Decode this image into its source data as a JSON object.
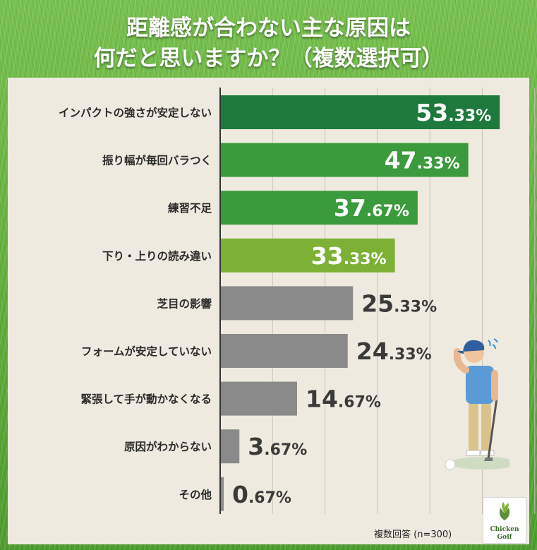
{
  "title": {
    "line1": "距離感が合わない主な原因は",
    "line2": "何だと思いますか？（複数選択可）"
  },
  "note": "複数回答 (n=300)",
  "logo": {
    "line1": "Chicken",
    "line2": "Golf"
  },
  "colors": {
    "dark_green": "#1e7a3c",
    "green": "#3a9a3c",
    "light_green": "#7cb135",
    "gray": "#8a8a8a",
    "panel": "#efeae0",
    "label_on_bar": "#ffffff",
    "label_off_bar": "#3a3a3a"
  },
  "chart_data": {
    "type": "bar",
    "orientation": "horizontal",
    "title": "距離感が合わない主な原因は何だと思いますか？（複数選択可）",
    "unit": "%",
    "xlim": [
      0,
      60
    ],
    "grid": true,
    "categories": [
      "インパクトの強さが安定しない",
      "振り幅が毎回バラつく",
      "練習不足",
      "下り・上りの読み違い",
      "芝目の影響",
      "フォームが安定していない",
      "緊張して手が動かなくなる",
      "原因がわからない",
      "その他"
    ],
    "values": [
      53.33,
      47.33,
      37.67,
      33.33,
      25.33,
      24.33,
      14.67,
      3.67,
      0.67
    ],
    "labels": [
      {
        "int": "53",
        "dec": ".33%"
      },
      {
        "int": "47",
        "dec": ".33%"
      },
      {
        "int": "37",
        "dec": ".67%"
      },
      {
        "int": "33",
        "dec": ".33%"
      },
      {
        "int": "25",
        "dec": ".33%"
      },
      {
        "int": "24",
        "dec": ".33%"
      },
      {
        "int": "14",
        "dec": ".67%"
      },
      {
        "int": "3",
        "dec": ".67%"
      },
      {
        "int": "0",
        "dec": ".67%"
      }
    ],
    "bar_colors": [
      "#1e7a3c",
      "#3a9a3c",
      "#3a9a3c",
      "#7cb135",
      "#8a8a8a",
      "#8a8a8a",
      "#8a8a8a",
      "#8a8a8a",
      "#8a8a8a"
    ],
    "label_inside": [
      true,
      true,
      true,
      true,
      false,
      false,
      false,
      false,
      false
    ]
  }
}
